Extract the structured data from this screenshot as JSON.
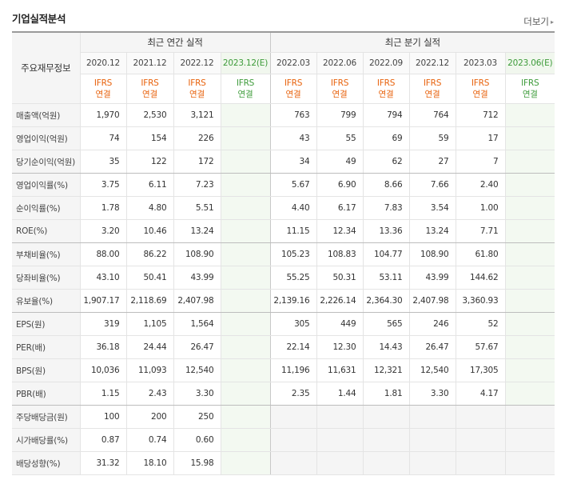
{
  "title": "기업실적분석",
  "more_label": "더보기",
  "header": {
    "row_label": "주요재무정보",
    "annual_group": "최근 연간 실적",
    "quarter_group": "최근 분기 실적",
    "annual_periods": [
      "2020.12",
      "2021.12",
      "2022.12",
      "2023.12(E)"
    ],
    "quarter_periods": [
      "2022.03",
      "2022.06",
      "2022.09",
      "2022.12",
      "2023.03",
      "2023.06(E)"
    ],
    "ifrs_top": "IFRS",
    "ifrs_bottom": "연결"
  },
  "rows": [
    {
      "label": "매출액(억원)",
      "annual": [
        "1,970",
        "2,530",
        "3,121",
        ""
      ],
      "quarter": [
        "763",
        "799",
        "794",
        "764",
        "712",
        ""
      ]
    },
    {
      "label": "영업이익(억원)",
      "annual": [
        "74",
        "154",
        "226",
        ""
      ],
      "quarter": [
        "43",
        "55",
        "69",
        "59",
        "17",
        ""
      ]
    },
    {
      "label": "당기순이익(억원)",
      "annual": [
        "35",
        "122",
        "172",
        ""
      ],
      "quarter": [
        "34",
        "49",
        "62",
        "27",
        "7",
        ""
      ]
    },
    {
      "label": "영업이익률(%)",
      "annual": [
        "3.75",
        "6.11",
        "7.23",
        ""
      ],
      "quarter": [
        "5.67",
        "6.90",
        "8.66",
        "7.66",
        "2.40",
        ""
      ]
    },
    {
      "label": "순이익률(%)",
      "annual": [
        "1.78",
        "4.80",
        "5.51",
        ""
      ],
      "quarter": [
        "4.40",
        "6.17",
        "7.83",
        "3.54",
        "1.00",
        ""
      ]
    },
    {
      "label": "ROE(%)",
      "annual": [
        "3.20",
        "10.46",
        "13.24",
        ""
      ],
      "quarter": [
        "11.15",
        "12.34",
        "13.36",
        "13.24",
        "7.71",
        ""
      ]
    },
    {
      "label": "부채비율(%)",
      "annual": [
        "88.00",
        "86.22",
        "108.90",
        ""
      ],
      "quarter": [
        "105.23",
        "108.83",
        "104.77",
        "108.90",
        "61.80",
        ""
      ]
    },
    {
      "label": "당좌비율(%)",
      "annual": [
        "43.10",
        "50.41",
        "43.99",
        ""
      ],
      "quarter": [
        "55.25",
        "50.31",
        "53.11",
        "43.99",
        "144.62",
        ""
      ]
    },
    {
      "label": "유보율(%)",
      "annual": [
        "1,907.17",
        "2,118.69",
        "2,407.98",
        ""
      ],
      "quarter": [
        "2,139.16",
        "2,226.14",
        "2,364.30",
        "2,407.98",
        "3,360.93",
        ""
      ]
    },
    {
      "label": "EPS(원)",
      "annual": [
        "319",
        "1,105",
        "1,564",
        ""
      ],
      "quarter": [
        "305",
        "449",
        "565",
        "246",
        "52",
        ""
      ]
    },
    {
      "label": "PER(배)",
      "annual": [
        "36.18",
        "24.44",
        "26.47",
        ""
      ],
      "quarter": [
        "22.14",
        "12.30",
        "14.43",
        "26.47",
        "57.67",
        ""
      ]
    },
    {
      "label": "BPS(원)",
      "annual": [
        "10,036",
        "11,093",
        "12,540",
        ""
      ],
      "quarter": [
        "11,196",
        "11,631",
        "12,321",
        "12,540",
        "17,305",
        ""
      ]
    },
    {
      "label": "PBR(배)",
      "annual": [
        "1.15",
        "2.43",
        "3.30",
        ""
      ],
      "quarter": [
        "2.35",
        "1.44",
        "1.81",
        "3.30",
        "4.17",
        ""
      ]
    },
    {
      "label": "주당배당금(원)",
      "annual": [
        "100",
        "200",
        "250",
        ""
      ],
      "quarter": null
    },
    {
      "label": "시가배당률(%)",
      "annual": [
        "0.87",
        "0.74",
        "0.60",
        ""
      ],
      "quarter": null
    },
    {
      "label": "배당성향(%)",
      "annual": [
        "31.32",
        "18.10",
        "15.98",
        ""
      ],
      "quarter": null
    }
  ],
  "section_breaks_after": [
    2,
    5,
    8,
    12
  ]
}
